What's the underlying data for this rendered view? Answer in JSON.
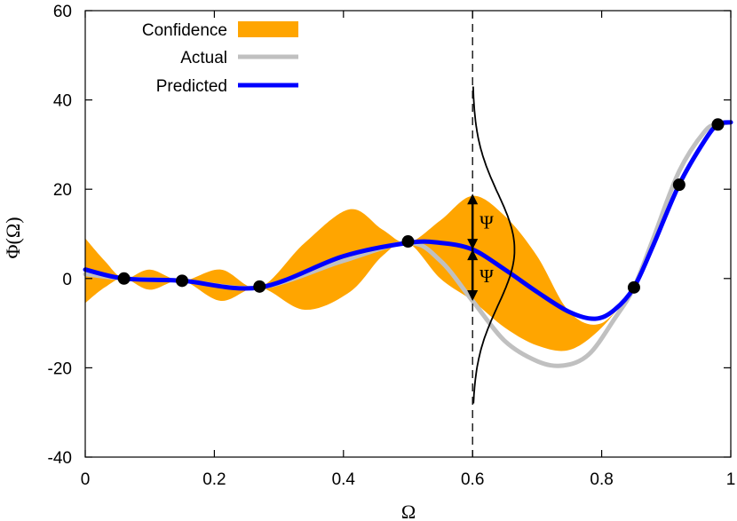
{
  "chart_data": {
    "type": "line",
    "xlabel": "Ω",
    "ylabel": "Φ(Ω)",
    "xlim": [
      0,
      1
    ],
    "ylim": [
      -40,
      60
    ],
    "x_ticks": [
      0,
      0.2,
      0.4,
      0.6,
      0.8,
      1
    ],
    "x_tick_labels": [
      "0",
      "0.2",
      "0.4",
      "0.6",
      "0.8",
      "1"
    ],
    "y_ticks": [
      -40,
      -20,
      0,
      20,
      40,
      60
    ],
    "y_tick_labels": [
      "-40",
      "-20",
      "0",
      "20",
      "40",
      "60"
    ],
    "grid": false,
    "legend_position": "top-left",
    "legend": [
      "Confidence",
      "Actual",
      "Predicted"
    ],
    "colors": {
      "confidence": "#FFA500",
      "actual": "#C0C0C0",
      "predicted": "#0000FF",
      "observations": "#000000"
    },
    "confidence_band": {
      "name": "Confidence",
      "x": [
        0,
        0.03,
        0.06,
        0.1,
        0.15,
        0.21,
        0.27,
        0.34,
        0.41,
        0.46,
        0.5,
        0.55,
        0.6,
        0.65,
        0.7,
        0.75,
        0.8,
        0.85
      ],
      "upper": [
        9,
        4,
        0,
        2,
        -0.5,
        2,
        -2,
        8,
        15.5,
        11,
        8,
        13,
        18.5,
        14,
        5,
        -7.5,
        -10,
        -2
      ],
      "lower": [
        -5.5,
        -2,
        0,
        -2.5,
        -0.5,
        -5,
        -2,
        -7,
        -3,
        5,
        8,
        0,
        -5,
        -11,
        -15,
        -16,
        -11,
        -2
      ]
    },
    "series": [
      {
        "name": "Actual",
        "x": [
          0,
          0.06,
          0.15,
          0.27,
          0.4,
          0.5,
          0.55,
          0.6,
          0.65,
          0.7,
          0.74,
          0.78,
          0.82,
          0.85,
          0.88,
          0.92,
          0.96,
          0.98,
          1.0
        ],
        "values": [
          1,
          0,
          -0.5,
          -2,
          4,
          8,
          4,
          -5,
          -14,
          -18.5,
          -19.5,
          -17,
          -9,
          -2,
          9,
          24,
          33,
          34.5,
          35
        ]
      },
      {
        "name": "Predicted",
        "x": [
          0,
          0.06,
          0.15,
          0.27,
          0.4,
          0.5,
          0.55,
          0.6,
          0.65,
          0.7,
          0.75,
          0.79,
          0.82,
          0.85,
          0.88,
          0.92,
          0.96,
          0.98,
          1.0
        ],
        "values": [
          2,
          0,
          -0.5,
          -2,
          5,
          8,
          8,
          6.5,
          2,
          -3,
          -7.5,
          -9,
          -7,
          -2,
          7.5,
          21,
          31,
          34.5,
          35
        ]
      }
    ],
    "observations": {
      "x": [
        0.06,
        0.15,
        0.27,
        0.5,
        0.85,
        0.92,
        0.98
      ],
      "values": [
        0,
        -0.5,
        -1.8,
        8.3,
        -2,
        21,
        34.5
      ]
    },
    "annotations": {
      "vline_x": 0.6,
      "psi_label": "Ψ",
      "psi_center": 6.5,
      "psi_upper": 19,
      "psi_lower": -5,
      "gaussian_y_range": [
        -28,
        43
      ],
      "gaussian_peak_x_offset": 0.065
    }
  }
}
